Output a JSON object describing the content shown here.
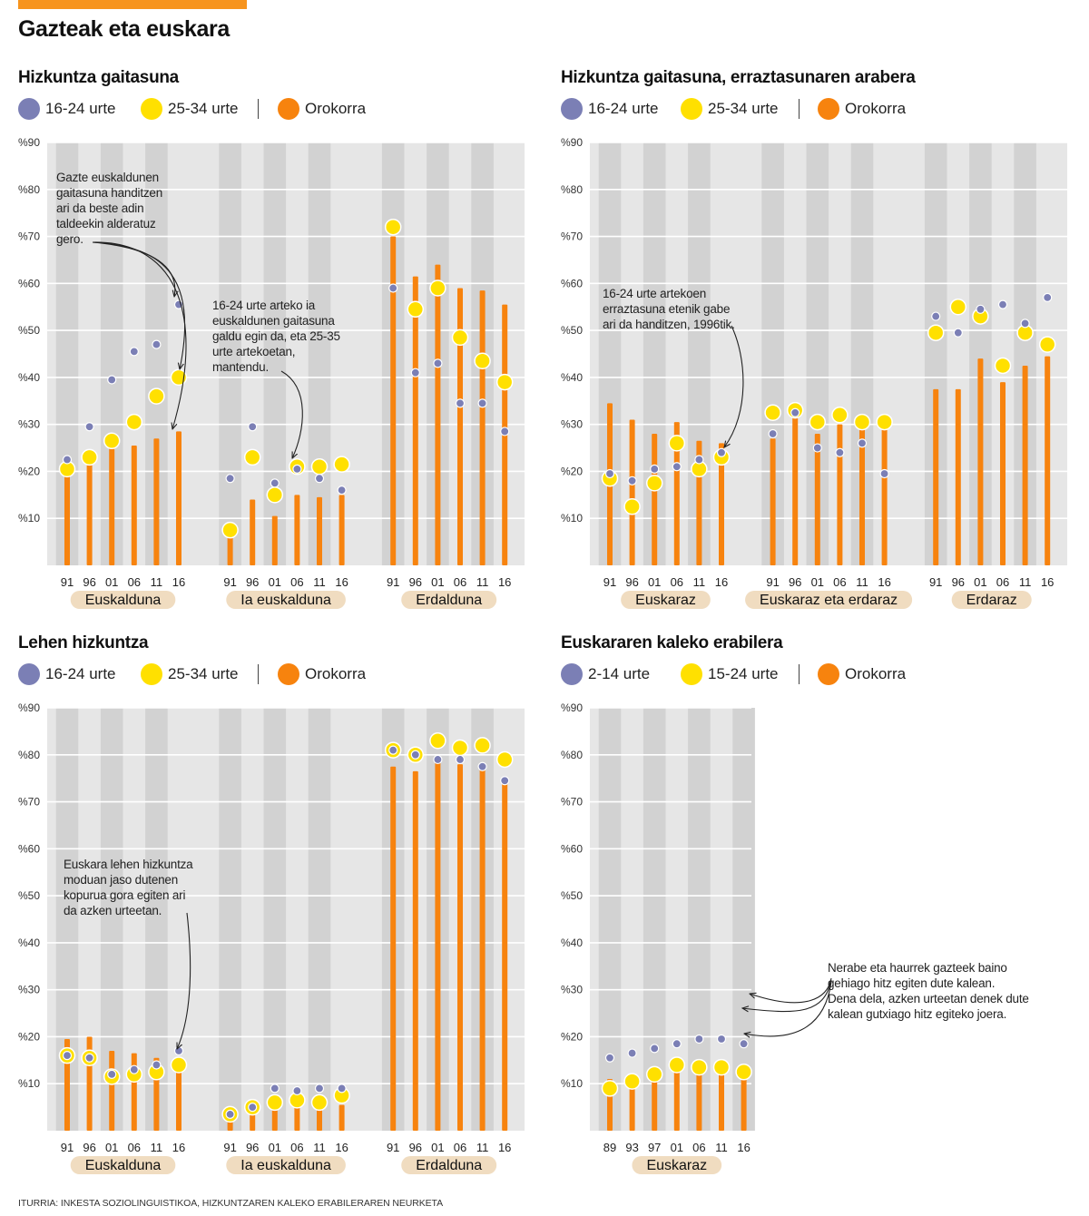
{
  "title": "Gazteak eta euskara",
  "source": "ITURRIA: INKESTA SOZIOLINGUISTIKOA, HIZKUNTZAREN KALEKO ERABILERAREN NEURKETA",
  "colors": {
    "young": "#7b7fb5",
    "mid": "#ffe000",
    "overall": "#f7830e",
    "band_light": "#e6e6e6",
    "band_dark": "#d2d2d2",
    "pill": "#f0dcc0"
  },
  "chart_data": [
    {
      "type": "bar",
      "title": "Hizkuntza gaitasuna",
      "ylim": [
        0,
        90
      ],
      "yticks": [
        "%10",
        "%20",
        "%30",
        "%40",
        "%50",
        "%60",
        "%70",
        "%80",
        "%90"
      ],
      "legend": [
        "16-24 urte",
        "25-34 urte",
        "Orokorra"
      ],
      "groups": [
        {
          "label": "Euskalduna",
          "years": [
            "91",
            "96",
            "01",
            "06",
            "11",
            "16"
          ],
          "overall": [
            20,
            22,
            25,
            25.5,
            27,
            28.5
          ],
          "young": [
            22.5,
            29.5,
            39.5,
            45.5,
            47,
            55.5
          ],
          "mid": [
            20.5,
            23,
            26.5,
            30.5,
            36,
            40
          ]
        },
        {
          "label": "Ia euskalduna",
          "years": [
            "91",
            "96",
            "01",
            "06",
            "11",
            "16"
          ],
          "overall": [
            6,
            14,
            10.5,
            15,
            14.5,
            15
          ],
          "young": [
            18.5,
            29.5,
            17.5,
            20.5,
            18.5,
            16
          ],
          "mid": [
            7.5,
            23,
            15,
            21,
            21,
            21.5
          ]
        },
        {
          "label": "Erdalduna",
          "years": [
            "91",
            "96",
            "01",
            "06",
            "11",
            "16"
          ],
          "overall": [
            70,
            61.5,
            64,
            59,
            58.5,
            55.5
          ],
          "young": [
            59,
            41,
            43,
            34.5,
            34.5,
            28.5
          ],
          "mid": [
            72,
            54.5,
            59,
            48.5,
            43.5,
            39
          ]
        }
      ],
      "annotations": [
        {
          "lines": [
            "Gazte euskaldunen",
            "gaitasuna handitzen",
            "ari da beste adin",
            "taldeekin alderatuz",
            "gero."
          ]
        },
        {
          "lines": [
            "16-24 urte arteko ia",
            "euskaldunen gaitasuna",
            "galdu egin da, eta 25-35",
            "urte artekoetan,",
            "mantendu."
          ]
        }
      ]
    },
    {
      "type": "bar",
      "title": "Hizkuntza gaitasuna, erraztasunaren arabera",
      "ylim": [
        0,
        90
      ],
      "yticks": [
        "%10",
        "%20",
        "%30",
        "%40",
        "%50",
        "%60",
        "%70",
        "%80",
        "%90"
      ],
      "legend": [
        "16-24 urte",
        "25-34 urte",
        "Orokorra"
      ],
      "groups": [
        {
          "label": "Euskaraz",
          "years": [
            "91",
            "96",
            "01",
            "06",
            "11",
            "16"
          ],
          "overall": [
            34.5,
            31,
            28,
            30.5,
            26.5,
            26
          ],
          "young": [
            19.5,
            18,
            20.5,
            21,
            22.5,
            24
          ],
          "mid": [
            18.5,
            12.5,
            17.5,
            26,
            20.5,
            23
          ]
        },
        {
          "label": "Euskaraz eta erdaraz",
          "years": [
            "91",
            "96",
            "01",
            "06",
            "11",
            "16"
          ],
          "overall": [
            27,
            31.5,
            28,
            30,
            29.5,
            30
          ],
          "young": [
            28,
            32.5,
            25,
            24,
            26,
            19.5
          ],
          "mid": [
            32.5,
            33,
            30.5,
            32,
            30.5,
            30.5
          ]
        },
        {
          "label": "Erdaraz",
          "years": [
            "91",
            "96",
            "01",
            "06",
            "11",
            "16"
          ],
          "overall": [
            37.5,
            37.5,
            44,
            39,
            42.5,
            44.5
          ],
          "young": [
            53,
            49.5,
            54.5,
            55.5,
            51.5,
            57
          ],
          "mid": [
            49.5,
            55,
            53,
            42.5,
            49.5,
            47
          ]
        }
      ],
      "annotations": [
        {
          "lines": [
            "16-24 urte artekoen",
            "erraztasuna etenik gabe",
            "ari da handitzen, 1996tik."
          ]
        }
      ]
    },
    {
      "type": "bar",
      "title": "Lehen hizkuntza",
      "ylim": [
        0,
        90
      ],
      "yticks": [
        "%10",
        "%20",
        "%30",
        "%40",
        "%50",
        "%60",
        "%70",
        "%80",
        "%90"
      ],
      "legend": [
        "16-24 urte",
        "25-34 urte",
        "Orokorra"
      ],
      "groups": [
        {
          "label": "Euskalduna",
          "years": [
            "91",
            "96",
            "01",
            "06",
            "11",
            "16"
          ],
          "overall": [
            19.5,
            20,
            17,
            16.5,
            15.5,
            15
          ],
          "young": [
            16,
            15.5,
            12,
            13,
            14,
            17
          ],
          "mid": [
            16,
            15.5,
            11.5,
            12,
            12.5,
            14
          ]
        },
        {
          "label": "Ia euskalduna",
          "years": [
            "91",
            "96",
            "01",
            "06",
            "11",
            "16"
          ],
          "overall": [
            2.5,
            4,
            4.5,
            5,
            5,
            5.5
          ],
          "young": [
            3.5,
            5,
            9,
            8.5,
            9,
            9
          ],
          "mid": [
            3.5,
            5,
            6,
            6.5,
            6,
            7.5
          ]
        },
        {
          "label": "Erdalduna",
          "years": [
            "91",
            "96",
            "01",
            "06",
            "11",
            "16"
          ],
          "overall": [
            77.5,
            76.5,
            79,
            78,
            78,
            75
          ],
          "young": [
            81,
            80,
            79,
            79,
            77.5,
            74.5
          ],
          "mid": [
            81,
            80,
            83,
            81.5,
            82,
            79
          ]
        }
      ],
      "annotations": [
        {
          "lines": [
            "Euskara lehen hizkuntza",
            "moduan jaso dutenen",
            "kopurua gora egiten ari",
            "da azken urteetan."
          ]
        }
      ]
    },
    {
      "type": "bar",
      "title": "Euskararen kaleko erabilera",
      "ylim": [
        0,
        90
      ],
      "yticks": [
        "%10",
        "%20",
        "%30",
        "%40",
        "%50",
        "%60",
        "%70",
        "%80",
        "%90"
      ],
      "legend": [
        "2-14 urte",
        "15-24 urte",
        "Orokorra"
      ],
      "groups": [
        {
          "label": "Euskaraz",
          "years": [
            "89",
            "93",
            "97",
            "01",
            "06",
            "11",
            "16"
          ],
          "overall": [
            11,
            12,
            12,
            14,
            14,
            14,
            12
          ],
          "young": [
            15.5,
            16.5,
            17.5,
            18.5,
            19.5,
            19.5,
            18.5
          ],
          "mid": [
            9,
            10.5,
            12,
            14,
            13.5,
            13.5,
            12.5
          ]
        }
      ],
      "annotations": [
        {
          "lines": [
            "Nerabe eta haurrek gazteek baino",
            "gehiago hitz egiten dute kalean.",
            "Dena dela, azken urteetan denek dute",
            "kalean gutxiago hitz egiteko joera."
          ]
        }
      ]
    }
  ]
}
